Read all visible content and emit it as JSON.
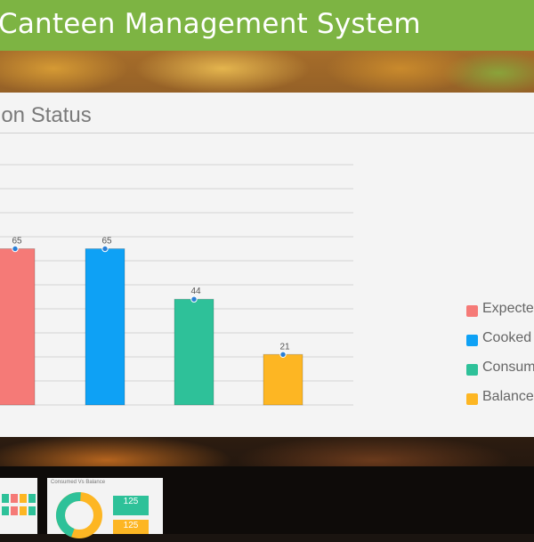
{
  "header": {
    "title": "Canteen Management System"
  },
  "panel": {
    "title": "ion Status"
  },
  "chart_data": {
    "type": "bar",
    "categories": [
      "Expected",
      "Cooked",
      "Consumed",
      "Balance"
    ],
    "values": [
      65,
      65,
      44,
      21
    ],
    "colors": [
      "#f57a77",
      "#0ea1f5",
      "#2ec199",
      "#fdb623"
    ],
    "ylim": [
      0,
      100
    ],
    "grid": true,
    "legend": "right"
  },
  "legend": {
    "items": [
      {
        "label": "Expecte",
        "color": "#f57a77"
      },
      {
        "label": "Cooked",
        "color": "#0ea1f5"
      },
      {
        "label": "Consum",
        "color": "#2ec199"
      },
      {
        "label": "Balance",
        "color": "#fdb623"
      }
    ]
  },
  "thumbnails": {
    "second_title": "Consumed Vs Balance",
    "tiles": [
      "125",
      "125"
    ]
  }
}
